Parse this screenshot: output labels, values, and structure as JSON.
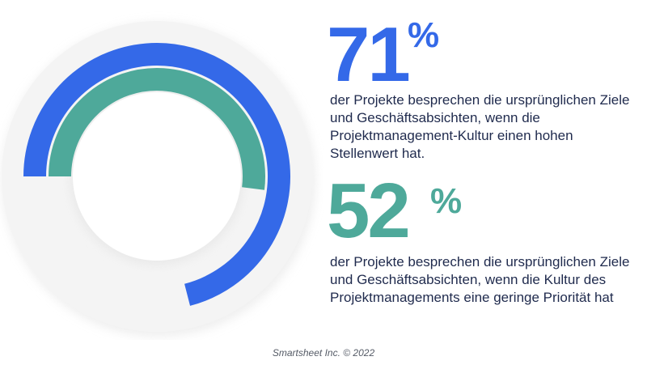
{
  "chart_data": {
    "type": "radial-bar",
    "series": [
      {
        "value": 71,
        "color": "#3469e8"
      },
      {
        "value": 52,
        "color": "#4ea99a"
      }
    ],
    "max": 100
  },
  "stats": [
    {
      "number": "71",
      "percent_sign": "%",
      "description": "der Projekte besprechen die ursprünglichen Ziele und Geschäftsabsichten, wenn die Projektmanagement-Kultur einen hohen Stellenwert hat."
    },
    {
      "number": "52",
      "percent_sign": "%",
      "description": "der Projekte besprechen die ursprünglichen Ziele und Geschäftsabsichten, wenn die Kultur des Projektmanagements eine geringe Priorität hat"
    }
  ],
  "footer": "Smartsheet Inc. © 2022",
  "colors": {
    "blue": "#3469e8",
    "teal": "#4ea99a",
    "text": "#1f2a4d",
    "track": "#f2f2f2"
  }
}
